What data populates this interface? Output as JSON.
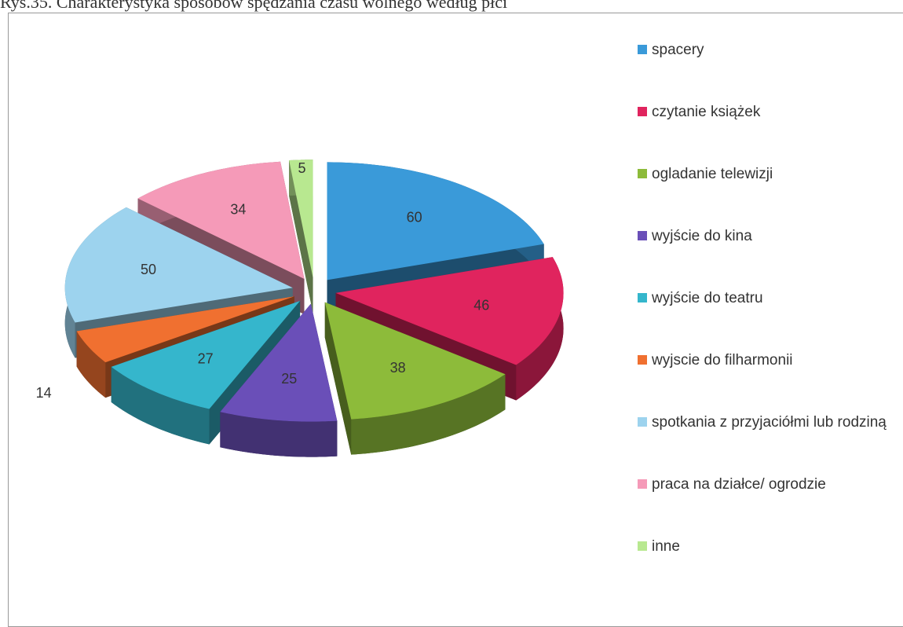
{
  "caption": "Rys.35. Charakterystyka sposobów spędzania czasu wolnego według płci",
  "chart_data": {
    "type": "pie3d",
    "categories": [
      "spacery",
      "czytanie książek",
      "ogladanie telewizji",
      "wyjście do kina",
      "wyjście do teatru",
      "wyjscie do filharmonii",
      "spotkania z przyjaciółmi lub rodziną",
      "praca na działce/ ogrodzie",
      "inne"
    ],
    "values": [
      60,
      46,
      38,
      25,
      27,
      14,
      50,
      34,
      5
    ],
    "colors": [
      "#3a9ad9",
      "#e0245e",
      "#8dbb3a",
      "#6a4fb8",
      "#35b6cc",
      "#f07030",
      "#9dd3ee",
      "#f59ab8",
      "#b8e890"
    ],
    "legend": "right"
  }
}
